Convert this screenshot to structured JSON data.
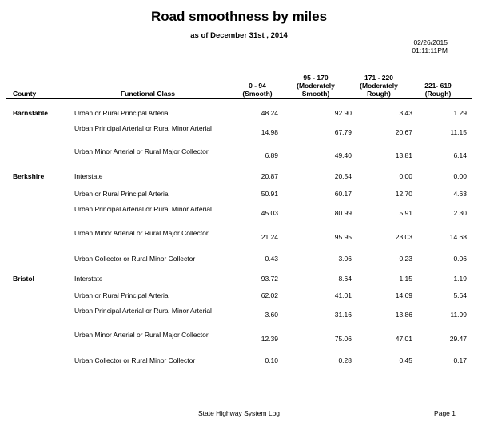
{
  "report": {
    "title": "Road smoothness by miles",
    "subtitle": "as of December 31st , 2014",
    "date": "02/26/2015",
    "time": "01:11:11PM"
  },
  "columns": {
    "county": "County",
    "functional_class": "Functional Class",
    "c1_line1": "0 - 94",
    "c1_line2": "(Smooth)",
    "c2_line1": "95 - 170",
    "c2_line2": "(Moderately",
    "c2_line3": "Smooth)",
    "c3_line1": "171 - 220",
    "c3_line2": "(Moderately",
    "c3_line3": "Rough)",
    "c4_line1": "221- 619",
    "c4_line2": "(Rough)"
  },
  "rows": [
    {
      "county": "Barnstable",
      "fc": "Urban or Rural Principal Arterial",
      "c1": "48.24",
      "c2": "92.90",
      "c3": "3.43",
      "c4": "1.29"
    },
    {
      "county": "",
      "fc": "Urban Principal Arterial or Rural Minor Arterial",
      "c1": "14.98",
      "c2": "67.79",
      "c3": "20.67",
      "c4": "11.15"
    },
    {
      "county": "",
      "fc": "Urban Minor Arterial or Rural Major Collector",
      "c1": "6.89",
      "c2": "49.40",
      "c3": "13.81",
      "c4": "6.14"
    },
    {
      "county": "Berkshire",
      "fc": "Interstate",
      "c1": "20.87",
      "c2": "20.54",
      "c3": "0.00",
      "c4": "0.00"
    },
    {
      "county": "",
      "fc": "Urban or Rural Principal Arterial",
      "c1": "50.91",
      "c2": "60.17",
      "c3": "12.70",
      "c4": "4.63"
    },
    {
      "county": "",
      "fc": "Urban Principal Arterial or Rural Minor Arterial",
      "c1": "45.03",
      "c2": "80.99",
      "c3": "5.91",
      "c4": "2.30"
    },
    {
      "county": "",
      "fc": "Urban Minor Arterial or Rural Major Collector",
      "c1": "21.24",
      "c2": "95.95",
      "c3": "23.03",
      "c4": "14.68"
    },
    {
      "county": "",
      "fc": "Urban Collector or Rural Minor Collector",
      "c1": "0.43",
      "c2": "3.06",
      "c3": "0.23",
      "c4": "0.06"
    },
    {
      "county": "Bristol",
      "fc": "Interstate",
      "c1": "93.72",
      "c2": "8.64",
      "c3": "1.15",
      "c4": "1.19"
    },
    {
      "county": "",
      "fc": "Urban or Rural Principal Arterial",
      "c1": "62.02",
      "c2": "41.01",
      "c3": "14.69",
      "c4": "5.64"
    },
    {
      "county": "",
      "fc": "Urban Principal Arterial or Rural Minor Arterial",
      "c1": "3.60",
      "c2": "31.16",
      "c3": "13.86",
      "c4": "11.99"
    },
    {
      "county": "",
      "fc": "Urban Minor Arterial or Rural Major Collector",
      "c1": "12.39",
      "c2": "75.06",
      "c3": "47.01",
      "c4": "29.47"
    },
    {
      "county": "",
      "fc": "Urban Collector or Rural Minor Collector",
      "c1": "0.10",
      "c2": "0.28",
      "c3": "0.45",
      "c4": "0.17"
    }
  ],
  "footer": {
    "center": "State Highway System Log",
    "page": "Page 1"
  }
}
